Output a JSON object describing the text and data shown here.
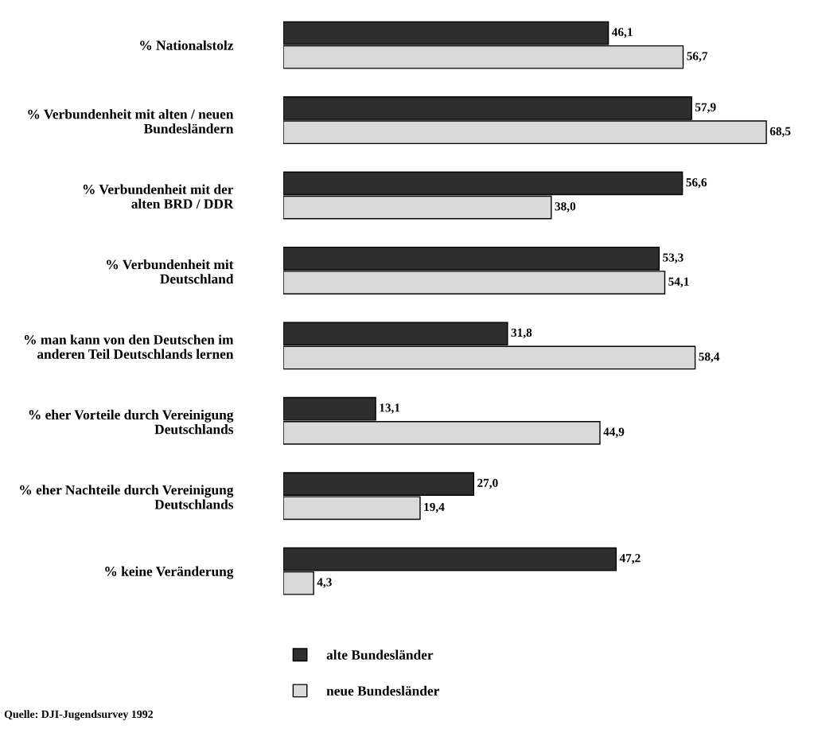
{
  "chart_data": {
    "type": "bar",
    "orientation": "horizontal",
    "categories": [
      "% Nationalstolz",
      "% Verbundenheit mit alten / neuen\nBundesländern",
      "% Verbundenheit mit der\nalten BRD / DDR",
      "% Verbundenheit mit\nDeutschland",
      "% man kann von den Deutschen im\nanderen Teil Deutschlands lernen",
      "% eher Vorteile durch Vereinigung\nDeutschlands",
      "% eher Nachteile durch Vereinigung\nDeutschlands",
      "% keine Veränderung"
    ],
    "series": [
      {
        "name": "alte Bundesländer",
        "color": "#2e2e2e",
        "values": [
          46.1,
          57.9,
          56.6,
          53.3,
          31.8,
          13.1,
          27.0,
          47.2
        ],
        "value_labels": [
          "46,1",
          "57,9",
          "56,6",
          "53,3",
          "31,8",
          "13,1",
          "27,0",
          "47,2"
        ]
      },
      {
        "name": "neue Bundesländer",
        "color": "#d9d9d9",
        "values": [
          56.7,
          68.5,
          38.0,
          54.1,
          58.4,
          44.9,
          19.4,
          4.3
        ],
        "value_labels": [
          "56,7",
          "68,5",
          "38,0",
          "54,1",
          "58,4",
          "44,9",
          "19,4",
          "4,3"
        ]
      }
    ],
    "legend": "bottom",
    "grid": false,
    "tick_labels": "y",
    "annotations": [
      "Quelle: DJI-Jugendsurvey 1992"
    ]
  }
}
